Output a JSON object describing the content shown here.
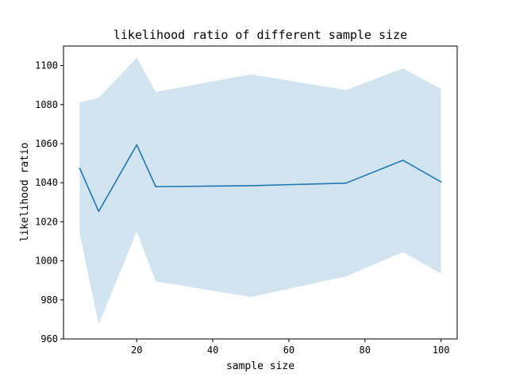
{
  "chart_data": {
    "type": "line",
    "title": "likelihood ratio of different sample size",
    "xlabel": "sample size",
    "ylabel": "likelihood ratio",
    "xlim": [
      0.75,
      104.25
    ],
    "ylim": [
      960,
      1110
    ],
    "xticks": [
      20,
      40,
      60,
      80,
      100
    ],
    "yticks": [
      960,
      980,
      1000,
      1020,
      1040,
      1060,
      1080,
      1100
    ],
    "grid": false,
    "legend": false,
    "x": [
      5,
      10,
      20,
      25,
      50,
      75,
      90,
      100
    ],
    "series": [
      {
        "values": [
          1047.5,
          1025.3,
          1059.4,
          1038.0,
          1038.5,
          1039.8,
          1051.5,
          1040.4
        ],
        "lower": [
          1014.0,
          967.5,
          1015.0,
          989.5,
          981.5,
          992.0,
          1004.5,
          993.5
        ],
        "upper": [
          1081.0,
          1083.5,
          1104.0,
          1086.5,
          1095.5,
          1087.5,
          1098.5,
          1088.0
        ],
        "color": "#1f77b4",
        "band_color": "#1f77b4",
        "band_opacity": 0.2
      }
    ]
  }
}
